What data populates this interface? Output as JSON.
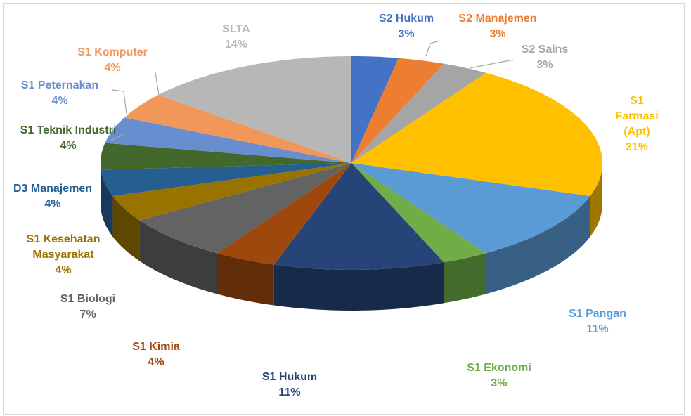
{
  "chart_data": {
    "type": "pie3d",
    "categories": [
      "S2 Hukum",
      "S2 Manajemen",
      "S2 Sains",
      "S1 Farmasi (Apt)",
      "S1 Pangan",
      "S1 Ekonomi",
      "S1 Hukum",
      "S1 Kimia",
      "S1 Biologi",
      "S1 Kesehatan Masyarakat",
      "D3 Manajemen",
      "S1 Teknik Industri",
      "S1 Peternakan",
      "S1 Komputer",
      "SLTA"
    ],
    "values": [
      3,
      3,
      3,
      21,
      11,
      3,
      11,
      4,
      7,
      4,
      4,
      4,
      4,
      4,
      14
    ],
    "value_labels": [
      "3%",
      "3%",
      "3%",
      "21%",
      "11%",
      "3%",
      "11%",
      "4%",
      "7%",
      "4%",
      "4%",
      "4%",
      "4%",
      "4%",
      "14%"
    ],
    "colors": [
      "#4472c4",
      "#ed7d31",
      "#a5a5a5",
      "#ffc000",
      "#5b9bd5",
      "#70ad47",
      "#264478",
      "#9e480e",
      "#636363",
      "#997300",
      "#255e91",
      "#43682b",
      "#698ed0",
      "#f1975a",
      "#b7b7b7"
    ]
  }
}
